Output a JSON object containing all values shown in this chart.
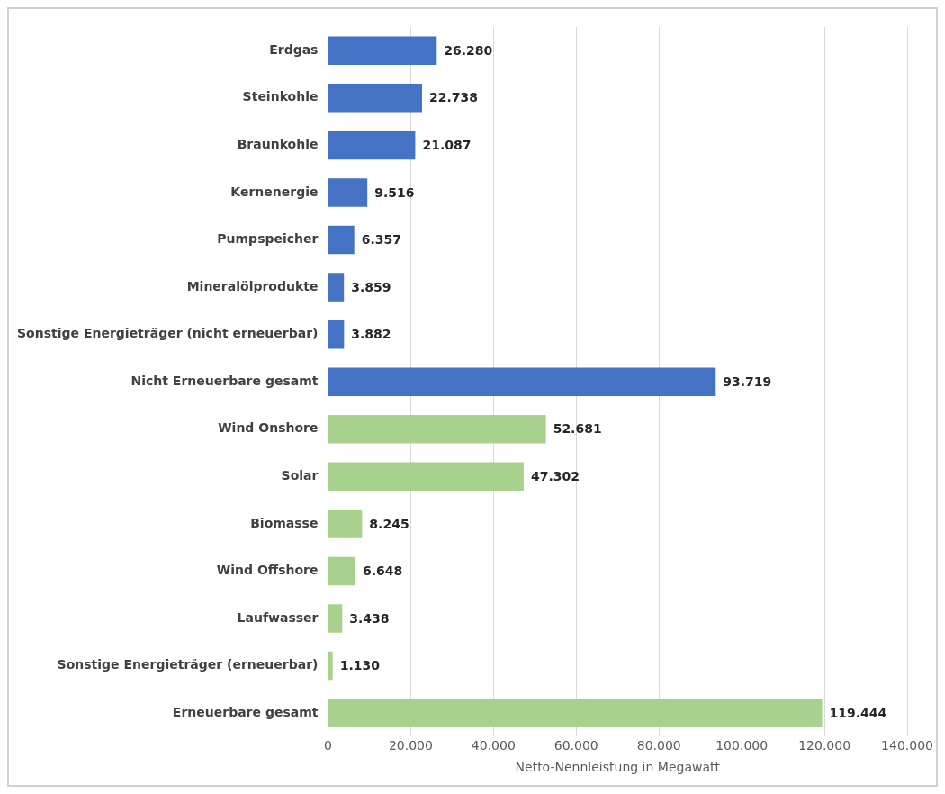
{
  "chart_data": {
    "type": "bar",
    "orientation": "horizontal",
    "xlabel": "Netto-Nennleistung in Megawatt",
    "categories": [
      "Erdgas",
      "Steinkohle",
      "Braunkohle",
      "Kernenergie",
      "Pumpspeicher",
      "Mineralölprodukte",
      "Sonstige Energieträger (nicht erneuerbar)",
      "Nicht Erneuerbare gesamt",
      "Wind Onshore",
      "Solar",
      "Biomasse",
      "Wind Offshore",
      "Laufwasser",
      "Sonstige Energieträger (erneuerbar)",
      "Erneuerbare gesamt"
    ],
    "values": [
      26280,
      22738,
      21087,
      9516,
      6357,
      3859,
      3882,
      93719,
      52681,
      47302,
      8245,
      6648,
      3438,
      1130,
      119444
    ],
    "value_labels": [
      "26.280",
      "22.738",
      "21.087",
      "9.516",
      "6.357",
      "3.859",
      "3.882",
      "93.719",
      "52.681",
      "47.302",
      "8.245",
      "6.648",
      "3.438",
      "1.130",
      "119.444"
    ],
    "colors": [
      "#4472c4",
      "#4472c4",
      "#4472c4",
      "#4472c4",
      "#4472c4",
      "#4472c4",
      "#4472c4",
      "#4472c4",
      "#a9d18e",
      "#a9d18e",
      "#a9d18e",
      "#a9d18e",
      "#a9d18e",
      "#a9d18e",
      "#a9d18e"
    ],
    "xlim": [
      0,
      140000
    ],
    "xticks": [
      {
        "value": 0,
        "label": "0"
      },
      {
        "value": 20000,
        "label": "20.000"
      },
      {
        "value": 40000,
        "label": "40.000"
      },
      {
        "value": 60000,
        "label": "60.000"
      },
      {
        "value": 80000,
        "label": "80.000"
      },
      {
        "value": 100000,
        "label": "100.000"
      },
      {
        "value": 120000,
        "label": "120.000"
      },
      {
        "value": 140000,
        "label": "140.000"
      }
    ],
    "grid": "x",
    "legend": false
  }
}
